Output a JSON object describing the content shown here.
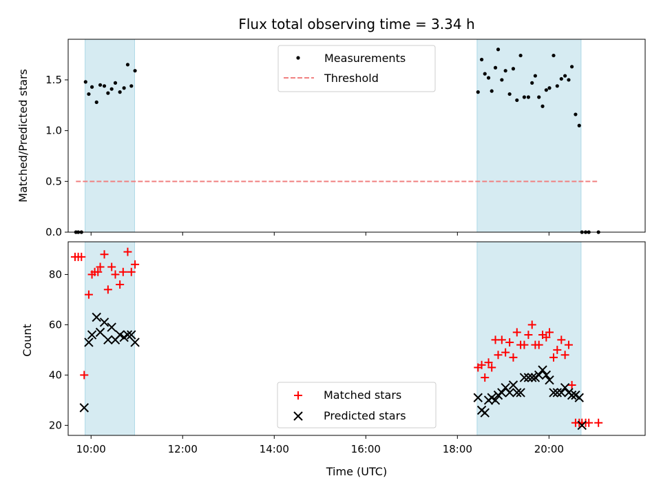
{
  "chart_data": [
    {
      "type": "scatter",
      "title": "Flux total observing time = 3.34 h",
      "xlabel": "",
      "ylabel": "Matched/Predicted stars",
      "xlim": [
        9.5,
        22.1
      ],
      "ylim": [
        0.0,
        1.9
      ],
      "yticks": [
        0.0,
        0.5,
        1.0,
        1.5
      ],
      "ytick_labels": [
        "0.0",
        "0.5",
        "1.0",
        "1.5"
      ],
      "shaded_intervals": [
        [
          9.87,
          10.95
        ],
        [
          18.43,
          20.7
        ]
      ],
      "threshold": {
        "value": 0.5,
        "x_range": [
          9.67,
          21.05
        ],
        "color": "#f08080"
      },
      "legend": [
        "Measurements",
        "Threshold"
      ],
      "legend_loc": "upper center",
      "series": [
        {
          "name": "Measurements",
          "color": "#000000",
          "x": [
            9.67,
            9.72,
            9.79,
            9.88,
            9.95,
            10.02,
            10.12,
            10.2,
            10.29,
            10.37,
            10.45,
            10.53,
            10.63,
            10.72,
            10.8,
            10.88,
            10.96,
            18.45,
            18.53,
            18.6,
            18.68,
            18.75,
            18.83,
            18.89,
            18.97,
            19.05,
            19.14,
            19.22,
            19.3,
            19.38,
            19.46,
            19.55,
            19.63,
            19.7,
            19.78,
            19.86,
            19.94,
            20.01,
            20.1,
            20.18,
            20.27,
            20.35,
            20.43,
            20.5,
            20.58,
            20.66,
            20.72,
            20.8,
            20.87,
            21.08
          ],
          "y": [
            0.0,
            0.0,
            0.0,
            1.48,
            1.36,
            1.43,
            1.28,
            1.45,
            1.44,
            1.37,
            1.41,
            1.47,
            1.38,
            1.42,
            1.65,
            1.44,
            1.59,
            1.38,
            1.7,
            1.56,
            1.52,
            1.39,
            1.62,
            1.8,
            1.5,
            1.59,
            1.36,
            1.61,
            1.3,
            1.74,
            1.33,
            1.33,
            1.47,
            1.54,
            1.33,
            1.24,
            1.4,
            1.42,
            1.74,
            1.44,
            1.51,
            1.54,
            1.5,
            1.63,
            1.16,
            1.05,
            0.0,
            0.0,
            0.0,
            0.0
          ]
        }
      ]
    },
    {
      "type": "scatter",
      "title": "",
      "xlabel": "Time (UTC)",
      "ylabel": "Count",
      "xlim": [
        9.5,
        22.1
      ],
      "ylim": [
        16,
        93
      ],
      "xticks": [
        10,
        12,
        14,
        16,
        18,
        20
      ],
      "xtick_labels": [
        "10:00",
        "12:00",
        "14:00",
        "16:00",
        "18:00",
        "20:00"
      ],
      "yticks": [
        20,
        40,
        60,
        80
      ],
      "ytick_labels": [
        "20",
        "40",
        "60",
        "80"
      ],
      "shaded_intervals": [
        [
          9.87,
          10.95
        ],
        [
          18.43,
          20.7
        ]
      ],
      "legend": [
        "Matched stars",
        "Predicted stars"
      ],
      "legend_loc": "lower center",
      "series": [
        {
          "name": "Matched stars",
          "marker": "plus",
          "color": "#ff0000",
          "x": [
            9.65,
            9.72,
            9.79,
            9.85,
            9.95,
            10.02,
            10.08,
            10.15,
            10.2,
            10.29,
            10.37,
            10.45,
            10.53,
            10.63,
            10.7,
            10.8,
            10.88,
            10.96,
            18.45,
            18.53,
            18.6,
            18.68,
            18.75,
            18.83,
            18.89,
            18.97,
            19.05,
            19.14,
            19.22,
            19.3,
            19.38,
            19.46,
            19.55,
            19.63,
            19.7,
            19.78,
            19.86,
            19.94,
            20.01,
            20.1,
            20.18,
            20.27,
            20.35,
            20.43,
            20.5,
            20.58,
            20.66,
            20.72,
            20.8,
            20.87,
            21.08
          ],
          "y": [
            87,
            87,
            87,
            40,
            72,
            80,
            81,
            81,
            83,
            88,
            74,
            83,
            80,
            76,
            81,
            89,
            81,
            84,
            43,
            44,
            39,
            45,
            43,
            54,
            48,
            54,
            49,
            53,
            47,
            57,
            52,
            52,
            56,
            60,
            52,
            52,
            56,
            55,
            57,
            47,
            50,
            54,
            48,
            52,
            36,
            21,
            21,
            21,
            21,
            21,
            21
          ]
        },
        {
          "name": "Predicted stars",
          "marker": "x",
          "color": "#000000",
          "x": [
            9.85,
            9.95,
            10.02,
            10.12,
            10.2,
            10.29,
            10.37,
            10.45,
            10.53,
            10.63,
            10.72,
            10.8,
            10.88,
            10.96,
            18.45,
            18.53,
            18.6,
            18.68,
            18.75,
            18.83,
            18.89,
            18.97,
            19.05,
            19.14,
            19.22,
            19.3,
            19.38,
            19.46,
            19.55,
            19.63,
            19.7,
            19.78,
            19.86,
            19.94,
            20.01,
            20.1,
            20.18,
            20.27,
            20.35,
            20.43,
            20.5,
            20.58,
            20.66,
            20.72
          ],
          "y": [
            27,
            53,
            56,
            63,
            57,
            61,
            54,
            59,
            54,
            56,
            55,
            56,
            56,
            53,
            31,
            26,
            25,
            30,
            31,
            30,
            32,
            33,
            35,
            33,
            36,
            33,
            33,
            39,
            39,
            39,
            39,
            40,
            42,
            40,
            38,
            33,
            33,
            33,
            35,
            33,
            32,
            32,
            31,
            20
          ]
        }
      ]
    }
  ]
}
